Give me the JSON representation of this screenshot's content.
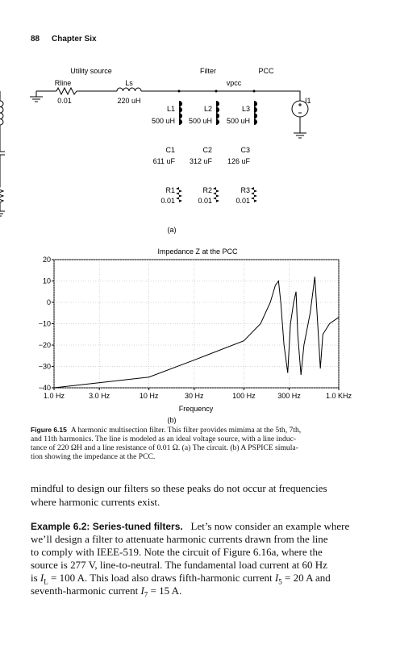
{
  "header": {
    "page_number": "88",
    "chapter": "Chapter Six"
  },
  "circuit": {
    "section_labels": [
      "Utility source",
      "Filter",
      "PCC"
    ],
    "rline": {
      "name": "Rline",
      "value": "0.01"
    },
    "ls": {
      "name": "Ls",
      "value": "220 uH"
    },
    "node": "vpcc",
    "source": "I1",
    "branches": [
      {
        "l": "L1",
        "lv": "500 uH",
        "c": "C1",
        "cv": "611 uF",
        "r": "R1",
        "rv": "0.01"
      },
      {
        "l": "L2",
        "lv": "500 uH",
        "c": "C2",
        "cv": "312 uF",
        "r": "R2",
        "rv": "0.01"
      },
      {
        "l": "L3",
        "lv": "500 uH",
        "c": "C3",
        "cv": "126 uF",
        "r": "R3",
        "rv": "0.01"
      }
    ],
    "label": "(a)"
  },
  "chart_data": {
    "type": "line",
    "title": "Impedance Z at the PCC",
    "xlabel": "Frequency",
    "label": "(b)",
    "x": [
      1,
      10,
      30,
      100,
      150,
      190,
      215,
      232,
      245,
      265,
      290,
      310,
      335,
      355,
      370,
      400,
      430,
      500,
      560,
      600,
      640,
      680,
      800,
      1000
    ],
    "values": [
      -40,
      -35,
      -27,
      -18,
      -10,
      0,
      8,
      10,
      0,
      -20,
      -33,
      -10,
      0,
      5,
      -15,
      -34,
      -20,
      -5,
      12,
      -10,
      -31,
      -15,
      -10,
      -7
    ],
    "color": "#000000",
    "xscale": "log",
    "xlim": [
      1,
      1000
    ],
    "ylim": [
      -40,
      20
    ],
    "grid": true,
    "xticks": [
      {
        "value": 1,
        "label": "1.0 Hz"
      },
      {
        "value": 3,
        "label": "3.0 Hz"
      },
      {
        "value": 10,
        "label": "10 Hz"
      },
      {
        "value": 30,
        "label": "30 Hz"
      },
      {
        "value": 100,
        "label": "100 Hz"
      },
      {
        "value": 300,
        "label": "300 Hz"
      },
      {
        "value": 1000,
        "label": "1.0 KHz"
      }
    ],
    "yticks": [
      20,
      10,
      0,
      {
        "value": -10,
        "label": "−10"
      },
      {
        "value": -20,
        "label": "−20"
      },
      {
        "value": -30,
        "label": "−30"
      },
      {
        "value": -40,
        "label": "−40"
      }
    ]
  },
  "caption": {
    "label": "Figure 6.15",
    "lines": [
      "A harmonic multisection filter. This filter provides mimima at the 5th, 7th,",
      "and 11th harmonics. The line is modeled as an ideal voltage source, with a line induc-",
      "tance of 220 ΩH and a line resistance of 0.01 Ω. (a) The circuit. (b) A PSPICE simula-",
      "tion showing the impedance at the PCC."
    ]
  },
  "body": {
    "paragraph": [
      "mindful to design our filters so these peaks do not occur at frequencies",
      "where harmonic currents exist."
    ],
    "example": {
      "heading": "Example 6.2: Series-tuned filters.",
      "lines": [
        [
          "Let’s now consider an example where"
        ],
        [
          "we’ll design a filter to attenuate harmonic currents drawn from the line"
        ],
        [
          "to comply with IEEE-519. Note the circuit of Figure 6.16a, where the"
        ],
        [
          "source is 277 V, line-to-neutral. The fundamental load current at 60 Hz"
        ],
        [
          "is ",
          "I",
          "L",
          " = 100 A. This load also draws fifth-harmonic current ",
          "I",
          "5",
          " = 20 A and"
        ],
        [
          "seventh-harmonic current ",
          "I",
          "7",
          " = 15 A."
        ]
      ]
    }
  }
}
